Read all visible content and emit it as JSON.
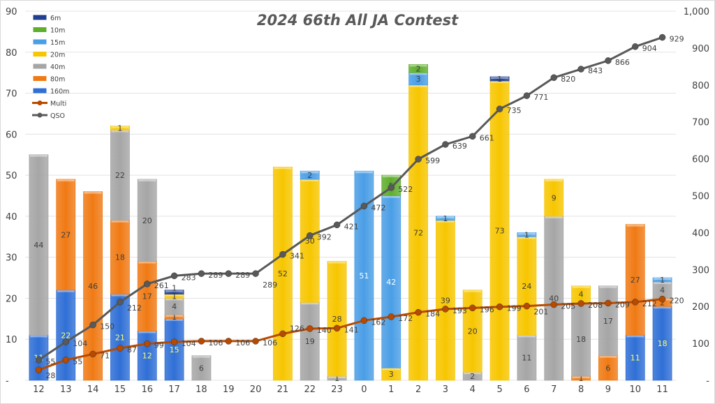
{
  "chart_data": {
    "type": "bar",
    "title": "2024  66th All JA Contest",
    "categories": [
      "12",
      "13",
      "14",
      "15",
      "16",
      "17",
      "18",
      "19",
      "20",
      "21",
      "22",
      "23",
      "0",
      "1",
      "2",
      "3",
      "4",
      "5",
      "6",
      "7",
      "8",
      "9",
      "10",
      "11"
    ],
    "ylim": [
      0,
      90
    ],
    "y2lim": [
      0,
      1000
    ],
    "yticks": [
      "-",
      "10",
      "20",
      "30",
      "40",
      "50",
      "60",
      "70",
      "80",
      "90"
    ],
    "y2ticks": [
      "-",
      "100",
      "200",
      "300",
      "400",
      "500",
      "600",
      "700",
      "800",
      "900",
      "1,000"
    ],
    "legend_position": "top-left",
    "stacked": true,
    "series": [
      {
        "name": "160m",
        "color": "#2f6fd6",
        "values": [
          11,
          22,
          0,
          21,
          12,
          15,
          0,
          0,
          0,
          0,
          0,
          0,
          0,
          0,
          0,
          0,
          0,
          0,
          0,
          0,
          0,
          0,
          11,
          18
        ]
      },
      {
        "name": "80m",
        "color": "#f07a14",
        "values": [
          0,
          27,
          46,
          18,
          17,
          1,
          0,
          0,
          0,
          0,
          0,
          0,
          0,
          0,
          0,
          0,
          0,
          0,
          0,
          0,
          1,
          6,
          27,
          2
        ]
      },
      {
        "name": "40m",
        "color": "#a6a6a6",
        "values": [
          44,
          0,
          0,
          22,
          20,
          4,
          6,
          0,
          0,
          0,
          19,
          1,
          0,
          0,
          0,
          0,
          2,
          0,
          11,
          40,
          18,
          17,
          0,
          4
        ]
      },
      {
        "name": "20m",
        "color": "#f7c600",
        "values": [
          0,
          0,
          0,
          1,
          0,
          1,
          0,
          0,
          0,
          52,
          30,
          28,
          0,
          3,
          72,
          39,
          20,
          73,
          24,
          9,
          4,
          0,
          0,
          0
        ]
      },
      {
        "name": "15m",
        "color": "#4a9ee6",
        "values": [
          0,
          0,
          0,
          0,
          0,
          0,
          0,
          0,
          0,
          0,
          2,
          0,
          51,
          42,
          3,
          1,
          0,
          0,
          1,
          0,
          0,
          0,
          0,
          1
        ]
      },
      {
        "name": "10m",
        "color": "#5fae2e",
        "values": [
          0,
          0,
          0,
          0,
          0,
          0,
          0,
          0,
          0,
          0,
          0,
          0,
          0,
          5,
          2,
          0,
          0,
          0,
          0,
          0,
          0,
          0,
          0,
          0
        ]
      },
      {
        "name": "6m",
        "color": "#1f3f8f",
        "values": [
          0,
          0,
          0,
          0,
          0,
          1,
          0,
          0,
          0,
          0,
          0,
          0,
          0,
          0,
          0,
          0,
          0,
          1,
          0,
          0,
          0,
          0,
          0,
          0
        ]
      }
    ],
    "lines": [
      {
        "name": "Multi",
        "color": "#b84a00",
        "axis": "right",
        "values": [
          28,
          55,
          71,
          87,
          99,
          104,
          106,
          106,
          106,
          126,
          140,
          141,
          162,
          172,
          184,
          193,
          196,
          199,
          201,
          205,
          208,
          209,
          212,
          220
        ]
      },
      {
        "name": "QSO",
        "color": "#595959",
        "axis": "right",
        "values": [
          55,
          104,
          150,
          212,
          261,
          283,
          289,
          289,
          289,
          341,
          392,
          421,
          472,
          522,
          599,
          639,
          661,
          735,
          771,
          820,
          843,
          866,
          904,
          929
        ]
      }
    ],
    "legend_order": [
      "6m",
      "10m",
      "15m",
      "20m",
      "40m",
      "80m",
      "160m",
      "Multi",
      "QSO"
    ]
  }
}
